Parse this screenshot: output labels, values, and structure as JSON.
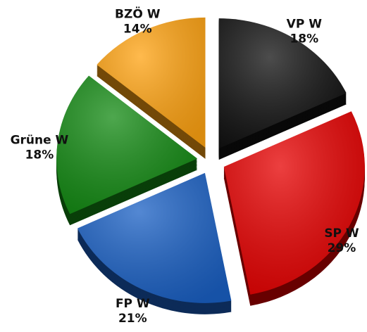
{
  "chart_data": {
    "type": "pie",
    "categories": [
      "VP W",
      "SP W",
      "FP W",
      "Grüne W",
      "BZÖ W"
    ],
    "values": [
      18,
      29,
      21,
      18,
      14
    ],
    "value_labels": [
      "18%",
      "29%",
      "21%",
      "18%",
      "14%"
    ],
    "colors": [
      "#111111",
      "#e60000",
      "#1a60c4",
      "#138a13",
      "#ffa312"
    ]
  }
}
